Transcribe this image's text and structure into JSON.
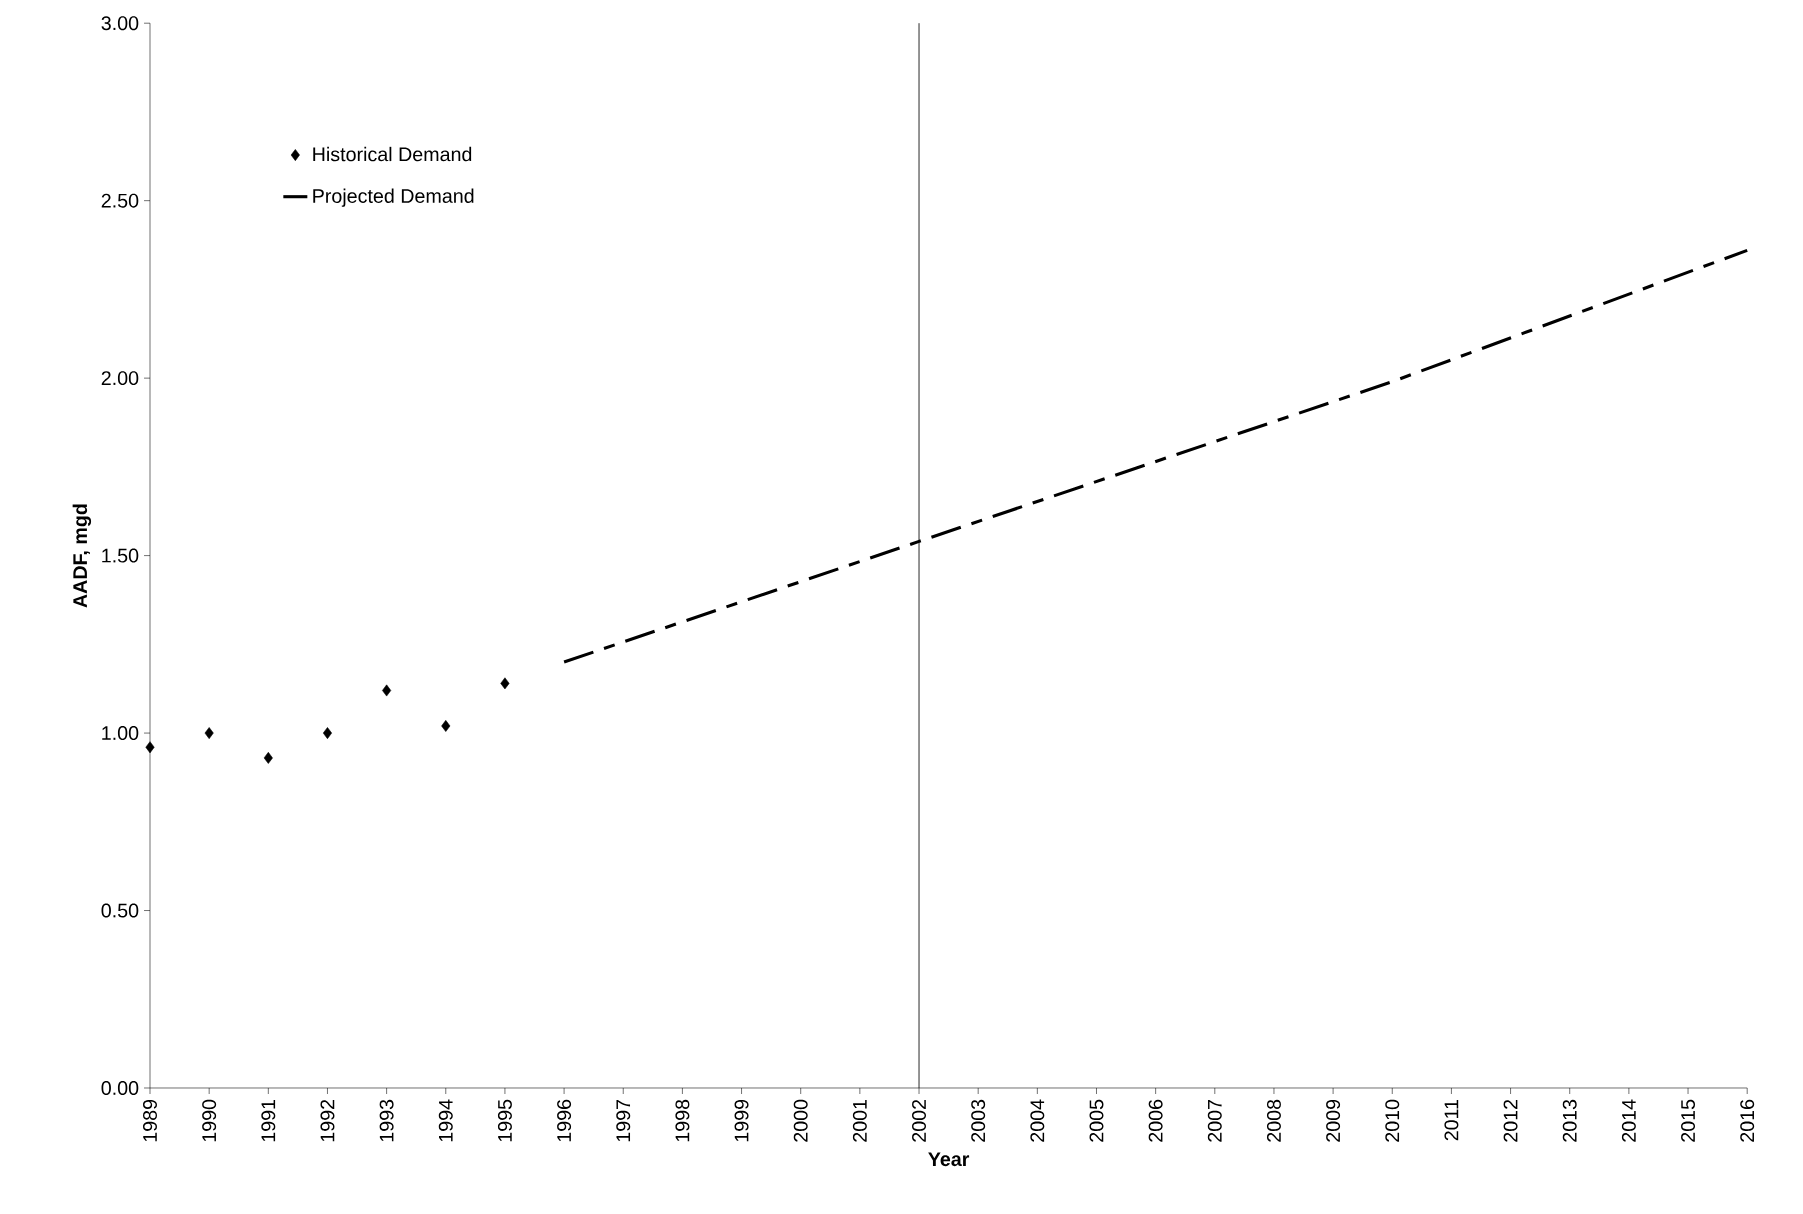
{
  "chart_data": {
    "type": "line",
    "xlabel": "Year",
    "ylabel": "AADF, mgd",
    "x": [
      1989,
      1990,
      1991,
      1992,
      1993,
      1994,
      1995
    ],
    "series": [
      {
        "name": "Historical Demand",
        "type": "scatter",
        "marker": "diamond",
        "color": "#000000",
        "values": [
          0.96,
          1.0,
          0.93,
          1.0,
          1.12,
          1.02,
          1.14
        ]
      },
      {
        "name": "Projected Demand",
        "line_style": "dashed",
        "color": "#000000",
        "x": [
          1996,
          2002,
          2010,
          2016
        ],
        "values": [
          1.2,
          1.54,
          1.99,
          2.36
        ]
      }
    ],
    "xlim": [
      1989,
      2016
    ],
    "xticks": [
      1989,
      1990,
      1991,
      1992,
      1993,
      1994,
      1995,
      1996,
      1997,
      1998,
      1999,
      2000,
      2001,
      2002,
      2003,
      2004,
      2005,
      2006,
      2007,
      2008,
      2009,
      2010,
      2011,
      2012,
      2013,
      2014,
      2015,
      2016
    ],
    "ylim": [
      0,
      3
    ],
    "yticks": [
      {
        "value": 0,
        "label": "0.00"
      },
      {
        "value": 0.5,
        "label": "0.50"
      },
      {
        "value": 1,
        "label": "1.00"
      },
      {
        "value": 1.5,
        "label": "1.50"
      },
      {
        "value": 2,
        "label": "2.00"
      },
      {
        "value": 2.5,
        "label": "2.50"
      },
      {
        "value": 3,
        "label": "3.00"
      }
    ],
    "ref_lines": [
      {
        "axis": "x",
        "value": 2002,
        "color": "#000000"
      }
    ],
    "legend": "top left",
    "grid": false
  }
}
